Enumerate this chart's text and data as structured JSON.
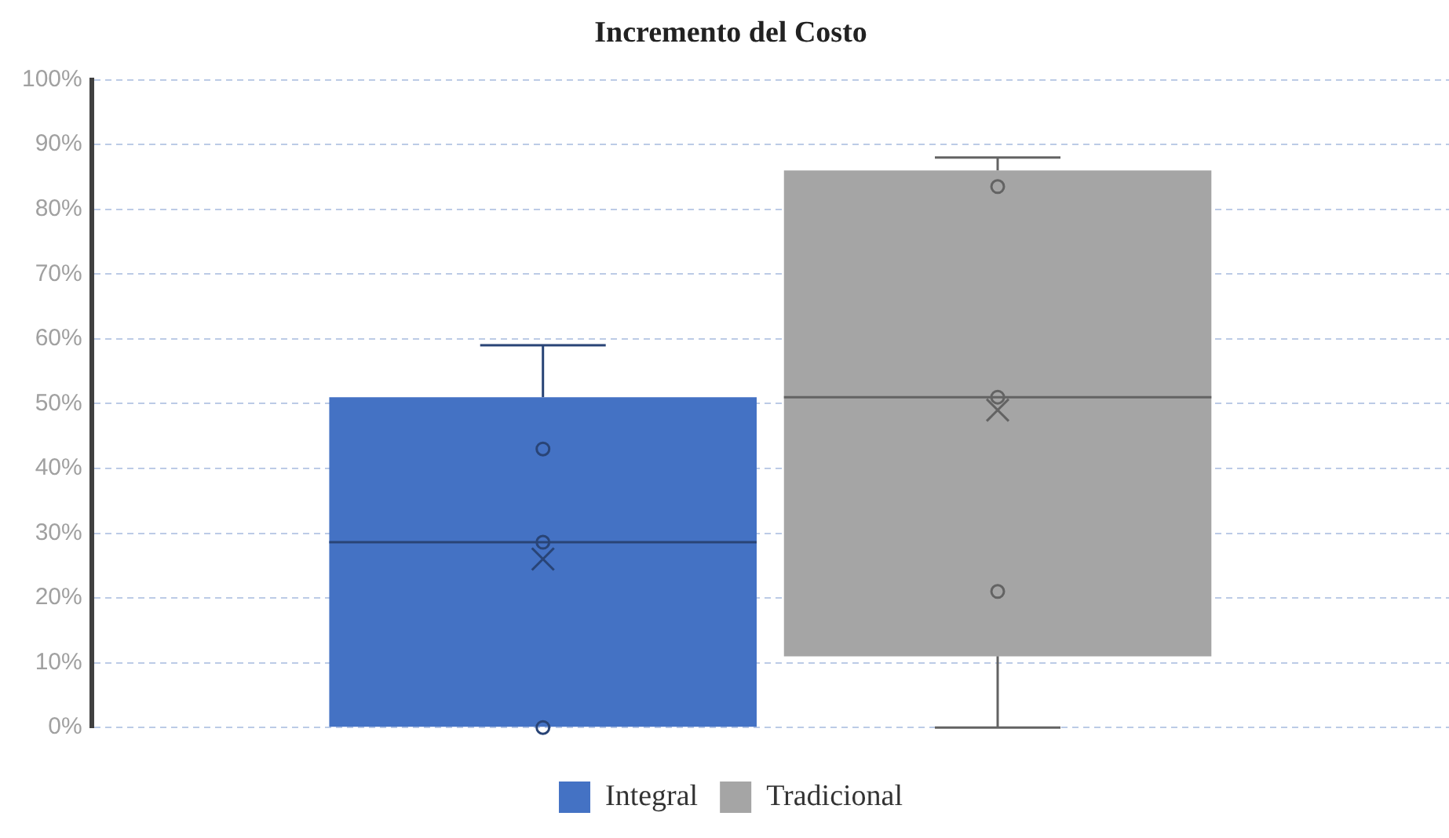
{
  "chart_data": {
    "type": "box",
    "title": "Incremento del Costo",
    "categories": [
      null
    ],
    "series": [
      {
        "name": "Integral",
        "color": "#4472c4",
        "boxes": [
          {
            "low": 0,
            "q1": 0,
            "median": 28.6,
            "q3": 51,
            "high": 59,
            "mean": 26,
            "outliers": [
              43,
              28.6,
              0
            ]
          }
        ]
      },
      {
        "name": "Tradicional",
        "color": "#a5a5a5",
        "boxes": [
          {
            "low": 0,
            "q1": 11,
            "median": 51,
            "q3": 86,
            "high": 88,
            "mean": 49,
            "outliers": [
              83.5,
              51,
              21
            ]
          }
        ]
      }
    ],
    "ylim": [
      0,
      100
    ],
    "yticks": [
      {
        "value": 0,
        "label": "0%"
      },
      {
        "value": 10,
        "label": "10%"
      },
      {
        "value": 20,
        "label": "20%"
      },
      {
        "value": 30,
        "label": "30%"
      },
      {
        "value": 40,
        "label": "40%"
      },
      {
        "value": 50,
        "label": "50%"
      },
      {
        "value": 60,
        "label": "60%"
      },
      {
        "value": 70,
        "label": "70%"
      },
      {
        "value": 80,
        "label": "80%"
      },
      {
        "value": 90,
        "label": "90%"
      },
      {
        "value": 100,
        "label": "100%"
      }
    ],
    "grid": "y",
    "legend": "bottom",
    "marker": "circle"
  }
}
